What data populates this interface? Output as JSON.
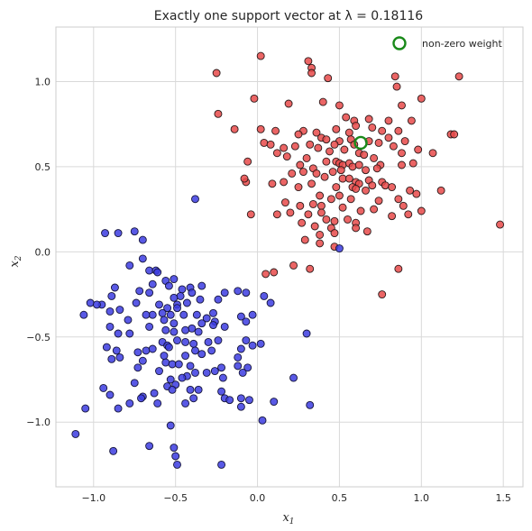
{
  "chart_data": {
    "type": "scatter",
    "title": "Exactly one support vector at λ = 0.18116",
    "xlabel": "x",
    "xlabel_sub": "1",
    "ylabel": "x",
    "ylabel_sub": "2",
    "xlim": [
      -1.23,
      1.62
    ],
    "ylim": [
      -1.38,
      1.32
    ],
    "xticks": [
      -1.0,
      -0.5,
      0.0,
      0.5,
      1.0,
      1.5
    ],
    "xtick_labels": [
      "−1.0",
      "−0.5",
      "0.0",
      "0.5",
      "1.0",
      "1.5"
    ],
    "yticks": [
      -1.0,
      -0.5,
      0.0,
      0.5,
      1.0
    ],
    "ytick_labels": [
      "−1.0",
      "−0.5",
      "0.0",
      "0.5",
      "1.0"
    ],
    "grid": true,
    "legend": {
      "position": "top-right",
      "entries": [
        {
          "label": "non-zero weight",
          "marker": "open-circle",
          "color": "#1a8a1a"
        }
      ]
    },
    "support_vector": {
      "x": 0.63,
      "y": 0.64,
      "color": "#1a8a1a"
    },
    "colors": {
      "red": "#e84a4a",
      "blue": "#3c3ce0"
    },
    "series": [
      {
        "color": "red",
        "points": [
          [
            0.31,
            1.12
          ],
          [
            0.33,
            1.08
          ],
          [
            0.33,
            1.05
          ],
          [
            0.02,
            1.15
          ],
          [
            0.43,
            1.02
          ],
          [
            -0.25,
            1.05
          ],
          [
            0.84,
            1.03
          ],
          [
            1.23,
            1.03
          ],
          [
            0.85,
            0.97
          ],
          [
            1.0,
            0.9
          ],
          [
            -0.02,
            0.9
          ],
          [
            0.4,
            0.88
          ],
          [
            0.19,
            0.87
          ],
          [
            0.5,
            0.86
          ],
          [
            0.88,
            0.86
          ],
          [
            -0.24,
            0.81
          ],
          [
            0.54,
            0.79
          ],
          [
            0.59,
            0.77
          ],
          [
            0.68,
            0.78
          ],
          [
            0.8,
            0.77
          ],
          [
            0.94,
            0.77
          ],
          [
            0.6,
            0.74
          ],
          [
            0.7,
            0.73
          ],
          [
            0.48,
            0.72
          ],
          [
            0.02,
            0.72
          ],
          [
            0.11,
            0.71
          ],
          [
            0.28,
            0.71
          ],
          [
            0.36,
            0.7
          ],
          [
            0.25,
            0.69
          ],
          [
            0.56,
            0.7
          ],
          [
            0.76,
            0.71
          ],
          [
            0.86,
            0.71
          ],
          [
            -0.14,
            0.72
          ],
          [
            0.39,
            0.67
          ],
          [
            0.42,
            0.66
          ],
          [
            0.5,
            0.65
          ],
          [
            0.47,
            0.63
          ],
          [
            0.57,
            0.66
          ],
          [
            0.59,
            0.63
          ],
          [
            0.68,
            0.65
          ],
          [
            0.74,
            0.64
          ],
          [
            0.8,
            0.67
          ],
          [
            0.83,
            0.62
          ],
          [
            0.9,
            0.65
          ],
          [
            1.18,
            0.69
          ],
          [
            1.2,
            0.69
          ],
          [
            0.04,
            0.64
          ],
          [
            0.08,
            0.63
          ],
          [
            0.16,
            0.61
          ],
          [
            0.23,
            0.62
          ],
          [
            0.32,
            0.63
          ],
          [
            0.37,
            0.61
          ],
          [
            0.44,
            0.59
          ],
          [
            0.53,
            0.6
          ],
          [
            0.62,
            0.58
          ],
          [
            0.65,
            0.57
          ],
          [
            0.71,
            0.55
          ],
          [
            0.88,
            0.58
          ],
          [
            0.98,
            0.6
          ],
          [
            1.07,
            0.58
          ],
          [
            0.12,
            0.58
          ],
          [
            0.18,
            0.56
          ],
          [
            0.3,
            0.55
          ],
          [
            0.42,
            0.53
          ],
          [
            0.48,
            0.53
          ],
          [
            0.5,
            0.52
          ],
          [
            0.52,
            0.51
          ],
          [
            0.56,
            0.52
          ],
          [
            0.58,
            0.5
          ],
          [
            0.62,
            0.51
          ],
          [
            0.75,
            0.51
          ],
          [
            0.88,
            0.51
          ],
          [
            0.95,
            0.52
          ],
          [
            -0.06,
            0.53
          ],
          [
            0.26,
            0.51
          ],
          [
            0.34,
            0.49
          ],
          [
            0.46,
            0.47
          ],
          [
            0.51,
            0.48
          ],
          [
            0.66,
            0.48
          ],
          [
            0.73,
            0.49
          ],
          [
            0.21,
            0.46
          ],
          [
            0.28,
            0.47
          ],
          [
            0.36,
            0.46
          ],
          [
            0.41,
            0.44
          ],
          [
            0.52,
            0.43
          ],
          [
            0.56,
            0.43
          ],
          [
            0.6,
            0.41
          ],
          [
            0.62,
            0.4
          ],
          [
            0.68,
            0.42
          ],
          [
            0.76,
            0.41
          ],
          [
            0.78,
            0.39
          ],
          [
            0.82,
            0.38
          ],
          [
            -0.07,
            0.41
          ],
          [
            -0.08,
            0.43
          ],
          [
            0.09,
            0.4
          ],
          [
            0.16,
            0.41
          ],
          [
            0.25,
            0.38
          ],
          [
            0.33,
            0.4
          ],
          [
            0.48,
            0.38
          ],
          [
            0.58,
            0.38
          ],
          [
            0.6,
            0.37
          ],
          [
            0.66,
            0.36
          ],
          [
            0.7,
            0.39
          ],
          [
            0.93,
            0.36
          ],
          [
            0.97,
            0.34
          ],
          [
            1.12,
            0.36
          ],
          [
            0.38,
            0.33
          ],
          [
            0.45,
            0.31
          ],
          [
            0.5,
            0.33
          ],
          [
            0.57,
            0.31
          ],
          [
            0.74,
            0.3
          ],
          [
            0.86,
            0.31
          ],
          [
            0.17,
            0.29
          ],
          [
            0.26,
            0.27
          ],
          [
            0.34,
            0.28
          ],
          [
            0.39,
            0.27
          ],
          [
            0.52,
            0.26
          ],
          [
            0.63,
            0.24
          ],
          [
            0.71,
            0.25
          ],
          [
            0.89,
            0.27
          ],
          [
            0.12,
            0.22
          ],
          [
            0.2,
            0.23
          ],
          [
            0.31,
            0.22
          ],
          [
            0.39,
            0.23
          ],
          [
            -0.04,
            0.22
          ],
          [
            0.42,
            0.19
          ],
          [
            0.47,
            0.18
          ],
          [
            0.55,
            0.19
          ],
          [
            0.6,
            0.17
          ],
          [
            0.82,
            0.21
          ],
          [
            0.92,
            0.22
          ],
          [
            1.0,
            0.24
          ],
          [
            0.27,
            0.17
          ],
          [
            0.35,
            0.15
          ],
          [
            0.45,
            0.14
          ],
          [
            0.6,
            0.14
          ],
          [
            0.67,
            0.12
          ],
          [
            1.48,
            0.16
          ],
          [
            0.38,
            0.1
          ],
          [
            0.47,
            0.11
          ],
          [
            0.29,
            0.07
          ],
          [
            0.38,
            0.05
          ],
          [
            0.47,
            0.03
          ],
          [
            0.22,
            -0.08
          ],
          [
            0.32,
            -0.1
          ],
          [
            0.1,
            -0.12
          ],
          [
            0.05,
            -0.13
          ],
          [
            0.86,
            -0.1
          ],
          [
            0.76,
            -0.25
          ]
        ]
      },
      {
        "color": "blue",
        "points": [
          [
            -0.38,
            0.31
          ],
          [
            -0.93,
            0.11
          ],
          [
            -0.85,
            0.11
          ],
          [
            -0.75,
            0.12
          ],
          [
            -0.7,
            0.07
          ],
          [
            -0.78,
            -0.08
          ],
          [
            -0.7,
            -0.04
          ],
          [
            -0.66,
            -0.11
          ],
          [
            -0.62,
            -0.11
          ],
          [
            -0.61,
            -0.12
          ],
          [
            -0.87,
            -0.21
          ],
          [
            -0.64,
            -0.19
          ],
          [
            -0.56,
            -0.17
          ],
          [
            -0.51,
            -0.16
          ],
          [
            -0.46,
            -0.22
          ],
          [
            -0.41,
            -0.21
          ],
          [
            -0.34,
            -0.2
          ],
          [
            -0.54,
            -0.2
          ],
          [
            -0.89,
            -0.26
          ],
          [
            -0.72,
            -0.23
          ],
          [
            -0.47,
            -0.26
          ],
          [
            -0.4,
            -0.24
          ],
          [
            -0.35,
            -0.28
          ],
          [
            -0.12,
            -0.23
          ],
          [
            -0.24,
            -0.28
          ],
          [
            -0.2,
            -0.24
          ],
          [
            -0.07,
            -0.24
          ],
          [
            -0.43,
            -0.3
          ],
          [
            -0.49,
            -0.31
          ],
          [
            -0.51,
            -0.27
          ],
          [
            -0.55,
            -0.33
          ],
          [
            -0.6,
            -0.31
          ],
          [
            -0.66,
            -0.24
          ],
          [
            -0.74,
            -0.3
          ],
          [
            -0.95,
            -0.31
          ],
          [
            -1.02,
            -0.3
          ],
          [
            -1.06,
            -0.37
          ],
          [
            -0.98,
            -0.31
          ],
          [
            -0.9,
            -0.35
          ],
          [
            -0.84,
            -0.34
          ],
          [
            -0.64,
            -0.37
          ],
          [
            -0.58,
            -0.36
          ],
          [
            -0.53,
            -0.37
          ],
          [
            -0.49,
            -0.33
          ],
          [
            -0.45,
            -0.37
          ],
          [
            -0.37,
            -0.37
          ],
          [
            -0.31,
            -0.39
          ],
          [
            -0.27,
            -0.36
          ],
          [
            0.04,
            -0.26
          ],
          [
            0.08,
            -0.3
          ],
          [
            -0.68,
            -0.37
          ],
          [
            -0.79,
            -0.4
          ],
          [
            -0.57,
            -0.4
          ],
          [
            -0.51,
            -0.42
          ],
          [
            -0.4,
            -0.45
          ],
          [
            -0.34,
            -0.42
          ],
          [
            -0.26,
            -0.41
          ],
          [
            -0.1,
            -0.38
          ],
          [
            -0.03,
            -0.37
          ],
          [
            0.3,
            -0.48
          ],
          [
            -0.9,
            -0.44
          ],
          [
            -0.66,
            -0.44
          ],
          [
            -0.56,
            -0.46
          ],
          [
            -0.51,
            -0.47
          ],
          [
            -0.44,
            -0.46
          ],
          [
            -0.36,
            -0.47
          ],
          [
            -0.27,
            -0.43
          ],
          [
            -0.07,
            -0.41
          ],
          [
            -0.78,
            -0.48
          ],
          [
            -0.85,
            -0.48
          ],
          [
            -0.2,
            -0.44
          ],
          [
            -0.58,
            -0.53
          ],
          [
            -0.55,
            -0.55
          ],
          [
            -0.54,
            -0.56
          ],
          [
            -0.49,
            -0.52
          ],
          [
            -0.44,
            -0.53
          ],
          [
            -0.39,
            -0.54
          ],
          [
            -0.3,
            -0.53
          ],
          [
            -0.24,
            -0.52
          ],
          [
            -0.07,
            -0.52
          ],
          [
            -0.03,
            -0.55
          ],
          [
            0.02,
            -0.54
          ],
          [
            -0.92,
            -0.56
          ],
          [
            -0.86,
            -0.58
          ],
          [
            -0.73,
            -0.59
          ],
          [
            -0.68,
            -0.58
          ],
          [
            -0.64,
            -0.57
          ],
          [
            -0.57,
            -0.61
          ],
          [
            -0.44,
            -0.61
          ],
          [
            -0.38,
            -0.58
          ],
          [
            -0.34,
            -0.6
          ],
          [
            -0.28,
            -0.58
          ],
          [
            -0.1,
            -0.57
          ],
          [
            -0.89,
            -0.63
          ],
          [
            -0.84,
            -0.62
          ],
          [
            -0.7,
            -0.64
          ],
          [
            -0.56,
            -0.65
          ],
          [
            -0.52,
            -0.66
          ],
          [
            -0.48,
            -0.66
          ],
          [
            -0.41,
            -0.67
          ],
          [
            -0.22,
            -0.68
          ],
          [
            -0.12,
            -0.62
          ],
          [
            -0.73,
            -0.68
          ],
          [
            -0.6,
            -0.7
          ],
          [
            -0.38,
            -0.71
          ],
          [
            -0.31,
            -0.71
          ],
          [
            -0.26,
            -0.7
          ],
          [
            -0.12,
            -0.67
          ],
          [
            -0.06,
            -0.68
          ],
          [
            -0.09,
            -0.71
          ],
          [
            -0.43,
            -0.73
          ],
          [
            -0.46,
            -0.74
          ],
          [
            -0.53,
            -0.75
          ],
          [
            -0.5,
            -0.78
          ],
          [
            -0.55,
            -0.79
          ],
          [
            -0.75,
            -0.77
          ],
          [
            -0.21,
            -0.74
          ],
          [
            0.22,
            -0.74
          ],
          [
            -0.52,
            -0.81
          ],
          [
            -0.41,
            -0.81
          ],
          [
            -0.36,
            -0.81
          ],
          [
            -0.63,
            -0.83
          ],
          [
            -0.94,
            -0.8
          ],
          [
            -0.9,
            -0.84
          ],
          [
            -0.7,
            -0.85
          ],
          [
            -0.71,
            -0.86
          ],
          [
            -0.39,
            -0.86
          ],
          [
            -0.2,
            -0.86
          ],
          [
            -0.17,
            -0.87
          ],
          [
            -0.1,
            -0.86
          ],
          [
            -0.05,
            -0.87
          ],
          [
            -0.78,
            -0.89
          ],
          [
            -0.61,
            -0.89
          ],
          [
            -0.44,
            -0.89
          ],
          [
            -0.22,
            -0.82
          ],
          [
            0.1,
            -0.88
          ],
          [
            0.32,
            -0.9
          ],
          [
            -0.1,
            -0.91
          ],
          [
            -1.05,
            -0.92
          ],
          [
            -0.85,
            -0.92
          ],
          [
            0.03,
            -0.99
          ],
          [
            -0.53,
            -1.02
          ],
          [
            -1.11,
            -1.07
          ],
          [
            -0.88,
            -1.17
          ],
          [
            -0.66,
            -1.14
          ],
          [
            -0.51,
            -1.15
          ],
          [
            -0.5,
            -1.2
          ],
          [
            -0.49,
            -1.25
          ],
          [
            -0.22,
            -1.25
          ],
          [
            0.5,
            0.02
          ]
        ]
      }
    ]
  }
}
